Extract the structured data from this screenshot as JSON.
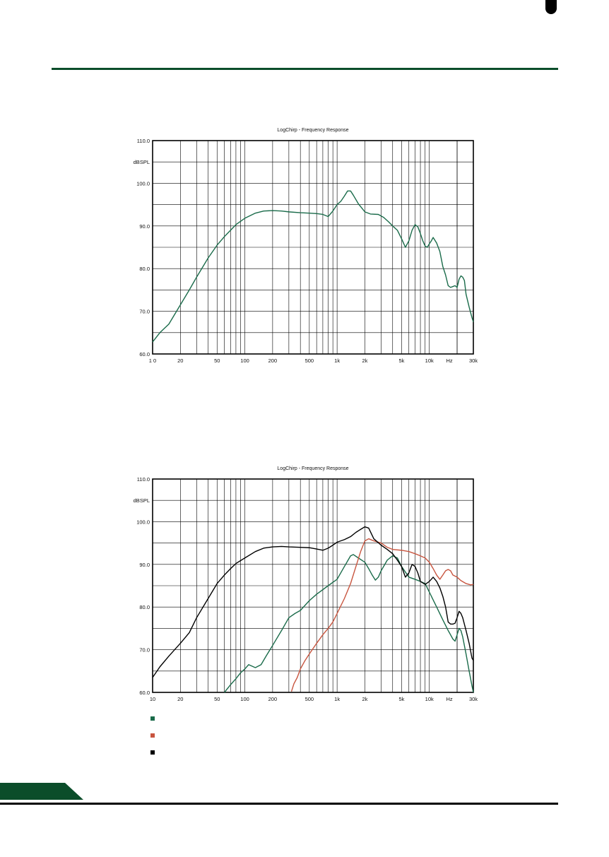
{
  "colors": {
    "accent": "#0b4d2a",
    "green": "#1a6b4a",
    "red": "#c8553f",
    "black": "#000000"
  },
  "legend": [
    {
      "color": "#1a6b4a"
    },
    {
      "color": "#c8553f"
    },
    {
      "color": "#000000"
    }
  ],
  "chart_data": [
    {
      "type": "line",
      "title": "LogChirp - Frequency Response",
      "ylabel": "dBSPL",
      "xlabel": "Hz",
      "x_scale": "log",
      "xlim": [
        10,
        30000
      ],
      "ylim": [
        60,
        110
      ],
      "y_ticks": [
        "110.0",
        "100.0",
        "90.0",
        "80.0",
        "70.0",
        "60.0"
      ],
      "x_ticks": [
        {
          "v": 10,
          "label": "1 0"
        },
        {
          "v": 20,
          "label": "20"
        },
        {
          "v": 50,
          "label": "50"
        },
        {
          "v": 100,
          "label": "100"
        },
        {
          "v": 200,
          "label": "200"
        },
        {
          "v": 500,
          "label": "500"
        },
        {
          "v": 1000,
          "label": "1k"
        },
        {
          "v": 2000,
          "label": "2k"
        },
        {
          "v": 5000,
          "label": "5k"
        },
        {
          "v": 10000,
          "label": "10k"
        },
        {
          "v": 30000,
          "label": "30k"
        }
      ],
      "grid": true,
      "series": [
        {
          "color": "#1a6b4a",
          "points": [
            [
              10,
              62.8
            ],
            [
              12,
              65
            ],
            [
              15,
              67
            ],
            [
              20,
              71.5
            ],
            [
              25,
              75
            ],
            [
              30,
              78
            ],
            [
              40,
              82.5
            ],
            [
              50,
              85.5
            ],
            [
              60,
              87.5
            ],
            [
              70,
              89
            ],
            [
              80,
              90.3
            ],
            [
              100,
              91.8
            ],
            [
              130,
              93
            ],
            [
              160,
              93.5
            ],
            [
              200,
              93.6
            ],
            [
              250,
              93.5
            ],
            [
              300,
              93.3
            ],
            [
              400,
              93.1
            ],
            [
              500,
              93
            ],
            [
              600,
              92.9
            ],
            [
              700,
              92.7
            ],
            [
              800,
              92.2
            ],
            [
              900,
              93.5
            ],
            [
              1000,
              95
            ],
            [
              1100,
              95.8
            ],
            [
              1200,
              97
            ],
            [
              1300,
              98.2
            ],
            [
              1400,
              98.2
            ],
            [
              1500,
              97.2
            ],
            [
              1700,
              95.2
            ],
            [
              2000,
              93.3
            ],
            [
              2300,
              92.8
            ],
            [
              2800,
              92.7
            ],
            [
              3200,
              92
            ],
            [
              3600,
              91
            ],
            [
              4000,
              90
            ],
            [
              4500,
              89
            ],
            [
              5000,
              87
            ],
            [
              5500,
              85
            ],
            [
              6000,
              86.5
            ],
            [
              6500,
              89
            ],
            [
              7000,
              90.3
            ],
            [
              7500,
              89.8
            ],
            [
              8000,
              88.2
            ],
            [
              8500,
              86.5
            ],
            [
              9000,
              85.3
            ],
            [
              9500,
              85
            ],
            [
              10000,
              85.8
            ],
            [
              10500,
              86.5
            ],
            [
              11000,
              87.3
            ],
            [
              12000,
              86
            ],
            [
              13000,
              84
            ],
            [
              14000,
              80.5
            ],
            [
              15000,
              78.5
            ],
            [
              16000,
              76
            ],
            [
              17000,
              75.6
            ],
            [
              18000,
              75.8
            ],
            [
              19000,
              76
            ],
            [
              20000,
              75.6
            ],
            [
              21000,
              77.5
            ],
            [
              22000,
              78.3
            ],
            [
              23000,
              78
            ],
            [
              24000,
              77.2
            ],
            [
              25000,
              74
            ],
            [
              27000,
              71
            ],
            [
              29000,
              68.5
            ],
            [
              30000,
              67.5
            ]
          ]
        }
      ]
    },
    {
      "type": "line",
      "title": "LogChirp - Frequency Response",
      "ylabel": "dBSPL",
      "xlabel": "Hz",
      "x_scale": "log",
      "xlim": [
        10,
        30000
      ],
      "ylim": [
        60,
        110
      ],
      "y_ticks": [
        "110.0",
        "100.0",
        "90.0",
        "80.0",
        "70.0",
        "60.0"
      ],
      "x_ticks": [
        {
          "v": 10,
          "label": "10"
        },
        {
          "v": 20,
          "label": "20"
        },
        {
          "v": 50,
          "label": "50"
        },
        {
          "v": 100,
          "label": "100"
        },
        {
          "v": 200,
          "label": "200"
        },
        {
          "v": 500,
          "label": "500"
        },
        {
          "v": 1000,
          "label": "1k"
        },
        {
          "v": 2000,
          "label": "2k"
        },
        {
          "v": 5000,
          "label": "5k"
        },
        {
          "v": 10000,
          "label": "10k"
        },
        {
          "v": 30000,
          "label": "30k"
        }
      ],
      "grid": true,
      "series": [
        {
          "color": "#1a6b4a",
          "points": [
            [
              60,
              60
            ],
            [
              70,
              61.8
            ],
            [
              80,
              63.2
            ],
            [
              90,
              64.6
            ],
            [
              100,
              65.5
            ],
            [
              110,
              66.5
            ],
            [
              130,
              65.8
            ],
            [
              150,
              66.5
            ],
            [
              170,
              68.5
            ],
            [
              200,
              71
            ],
            [
              250,
              74.5
            ],
            [
              300,
              77.5
            ],
            [
              350,
              78.5
            ],
            [
              400,
              79.2
            ],
            [
              500,
              81.5
            ],
            [
              600,
              83
            ],
            [
              800,
              85
            ],
            [
              1000,
              86.5
            ],
            [
              1200,
              89.5
            ],
            [
              1400,
              92
            ],
            [
              1500,
              92.3
            ],
            [
              1700,
              91.5
            ],
            [
              2000,
              90.5
            ],
            [
              2200,
              89
            ],
            [
              2400,
              87.5
            ],
            [
              2600,
              86.3
            ],
            [
              2800,
              87
            ],
            [
              3000,
              88.5
            ],
            [
              3500,
              91
            ],
            [
              4000,
              92
            ],
            [
              4500,
              91.5
            ],
            [
              5000,
              89.5
            ],
            [
              6000,
              87
            ],
            [
              7000,
              86.5
            ],
            [
              8000,
              86
            ],
            [
              9000,
              85.5
            ],
            [
              10000,
              83.5
            ],
            [
              12000,
              80
            ],
            [
              14000,
              77
            ],
            [
              16000,
              74.5
            ],
            [
              18000,
              72.5
            ],
            [
              19000,
              72
            ],
            [
              20000,
              73.5
            ],
            [
              21000,
              75
            ],
            [
              22000,
              74.5
            ],
            [
              23000,
              73
            ],
            [
              25000,
              69
            ],
            [
              27000,
              65
            ],
            [
              29000,
              61.5
            ],
            [
              30000,
              60
            ]
          ]
        },
        {
          "color": "#c8553f",
          "points": [
            [
              320,
              60.2
            ],
            [
              340,
              62
            ],
            [
              370,
              63.5
            ],
            [
              400,
              65.5
            ],
            [
              450,
              67.5
            ],
            [
              500,
              69
            ],
            [
              600,
              71.5
            ],
            [
              700,
              73.5
            ],
            [
              800,
              75
            ],
            [
              900,
              76.5
            ],
            [
              1000,
              78.5
            ],
            [
              1200,
              82
            ],
            [
              1400,
              85.5
            ],
            [
              1600,
              89.5
            ],
            [
              1800,
              93
            ],
            [
              2000,
              95.5
            ],
            [
              2200,
              96
            ],
            [
              2500,
              95.5
            ],
            [
              3000,
              95
            ],
            [
              3500,
              94
            ],
            [
              4000,
              93.5
            ],
            [
              5000,
              93.3
            ],
            [
              6000,
              93
            ],
            [
              7000,
              92.5
            ],
            [
              8000,
              92
            ],
            [
              9000,
              91.5
            ],
            [
              10000,
              90.5
            ],
            [
              11000,
              89
            ],
            [
              12000,
              87.5
            ],
            [
              13000,
              86.5
            ],
            [
              14000,
              87.5
            ],
            [
              15000,
              88.5
            ],
            [
              16000,
              88.8
            ],
            [
              17000,
              88.5
            ],
            [
              18000,
              87.5
            ],
            [
              20000,
              87
            ],
            [
              22000,
              86.2
            ],
            [
              25000,
              85.5
            ],
            [
              28000,
              85.2
            ],
            [
              30000,
              85.3
            ]
          ]
        },
        {
          "color": "#000000",
          "points": [
            [
              10,
              63.5
            ],
            [
              12,
              66
            ],
            [
              15,
              68.5
            ],
            [
              20,
              71.5
            ],
            [
              25,
              74
            ],
            [
              30,
              77.5
            ],
            [
              40,
              82
            ],
            [
              50,
              85.5
            ],
            [
              60,
              87.5
            ],
            [
              70,
              89
            ],
            [
              80,
              90.2
            ],
            [
              100,
              91.5
            ],
            [
              130,
              93
            ],
            [
              160,
              93.8
            ],
            [
              200,
              94.1
            ],
            [
              250,
              94.2
            ],
            [
              300,
              94.1
            ],
            [
              400,
              94
            ],
            [
              500,
              93.9
            ],
            [
              600,
              93.6
            ],
            [
              700,
              93.3
            ],
            [
              800,
              93.8
            ],
            [
              900,
              94.5
            ],
            [
              1000,
              95.2
            ],
            [
              1200,
              95.8
            ],
            [
              1400,
              96.5
            ],
            [
              1600,
              97.5
            ],
            [
              1800,
              98.2
            ],
            [
              2000,
              98.8
            ],
            [
              2200,
              98.5
            ],
            [
              2500,
              96
            ],
            [
              3000,
              94.5
            ],
            [
              3500,
              93.5
            ],
            [
              4000,
              92.5
            ],
            [
              4500,
              91
            ],
            [
              5000,
              89.5
            ],
            [
              5500,
              87
            ],
            [
              6000,
              88
            ],
            [
              6500,
              90
            ],
            [
              7000,
              89.5
            ],
            [
              7500,
              88
            ],
            [
              8000,
              86
            ],
            [
              9000,
              85.3
            ],
            [
              10000,
              86
            ],
            [
              11000,
              87
            ],
            [
              12000,
              86
            ],
            [
              13000,
              84.5
            ],
            [
              14000,
              82.5
            ],
            [
              15000,
              80
            ],
            [
              16000,
              76.5
            ],
            [
              17000,
              76
            ],
            [
              18000,
              76
            ],
            [
              19000,
              76.2
            ],
            [
              20000,
              77.5
            ],
            [
              21000,
              79
            ],
            [
              22000,
              78.5
            ],
            [
              23000,
              77.5
            ],
            [
              25000,
              74.5
            ],
            [
              27000,
              71.5
            ],
            [
              29000,
              68
            ],
            [
              30000,
              67.5
            ]
          ]
        }
      ]
    }
  ]
}
